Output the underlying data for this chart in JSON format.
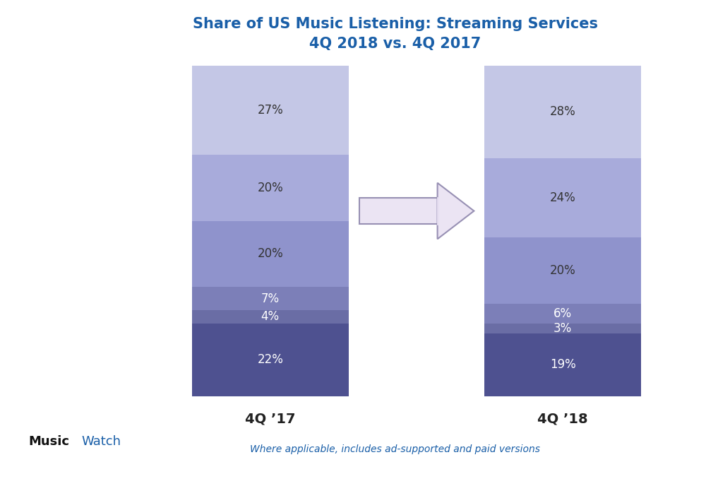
{
  "title_line1": "Share of US Music Listening: Streaming Services",
  "title_line2": "4Q 2018 vs. 4Q 2017",
  "title_color": "#1a5fa8",
  "subtitle": "Where applicable, includes ad-supported and paid versions",
  "subtitle_color": "#1a5fa8",
  "xlabel_left": "4Q ’17",
  "xlabel_right": "4Q ’18",
  "xlabel_color": "#222222",
  "segments_2017": [
    27,
    20,
    20,
    7,
    4,
    22
  ],
  "segments_2018": [
    28,
    24,
    20,
    6,
    3,
    19
  ],
  "labels_2017": [
    "27%",
    "20%",
    "20%",
    "7%",
    "4%",
    "22%"
  ],
  "labels_2018": [
    "28%",
    "24%",
    "20%",
    "6%",
    "3%",
    "19%"
  ],
  "colors": [
    "#c4c7e6",
    "#a8abdb",
    "#8f93cc",
    "#7c7fb8",
    "#6a6da5",
    "#4e5190"
  ],
  "label_colors_2017": [
    "#333333",
    "#333333",
    "#333333",
    "#ffffff",
    "#ffffff",
    "#ffffff"
  ],
  "label_colors_2018": [
    "#333333",
    "#333333",
    "#333333",
    "#ffffff",
    "#ffffff",
    "#ffffff"
  ],
  "arrow_body_color": "#e8e0f2",
  "arrow_edge_color": "#8880a8",
  "musicwatch_black": "#111111",
  "musicwatch_blue": "#1a5fa8"
}
